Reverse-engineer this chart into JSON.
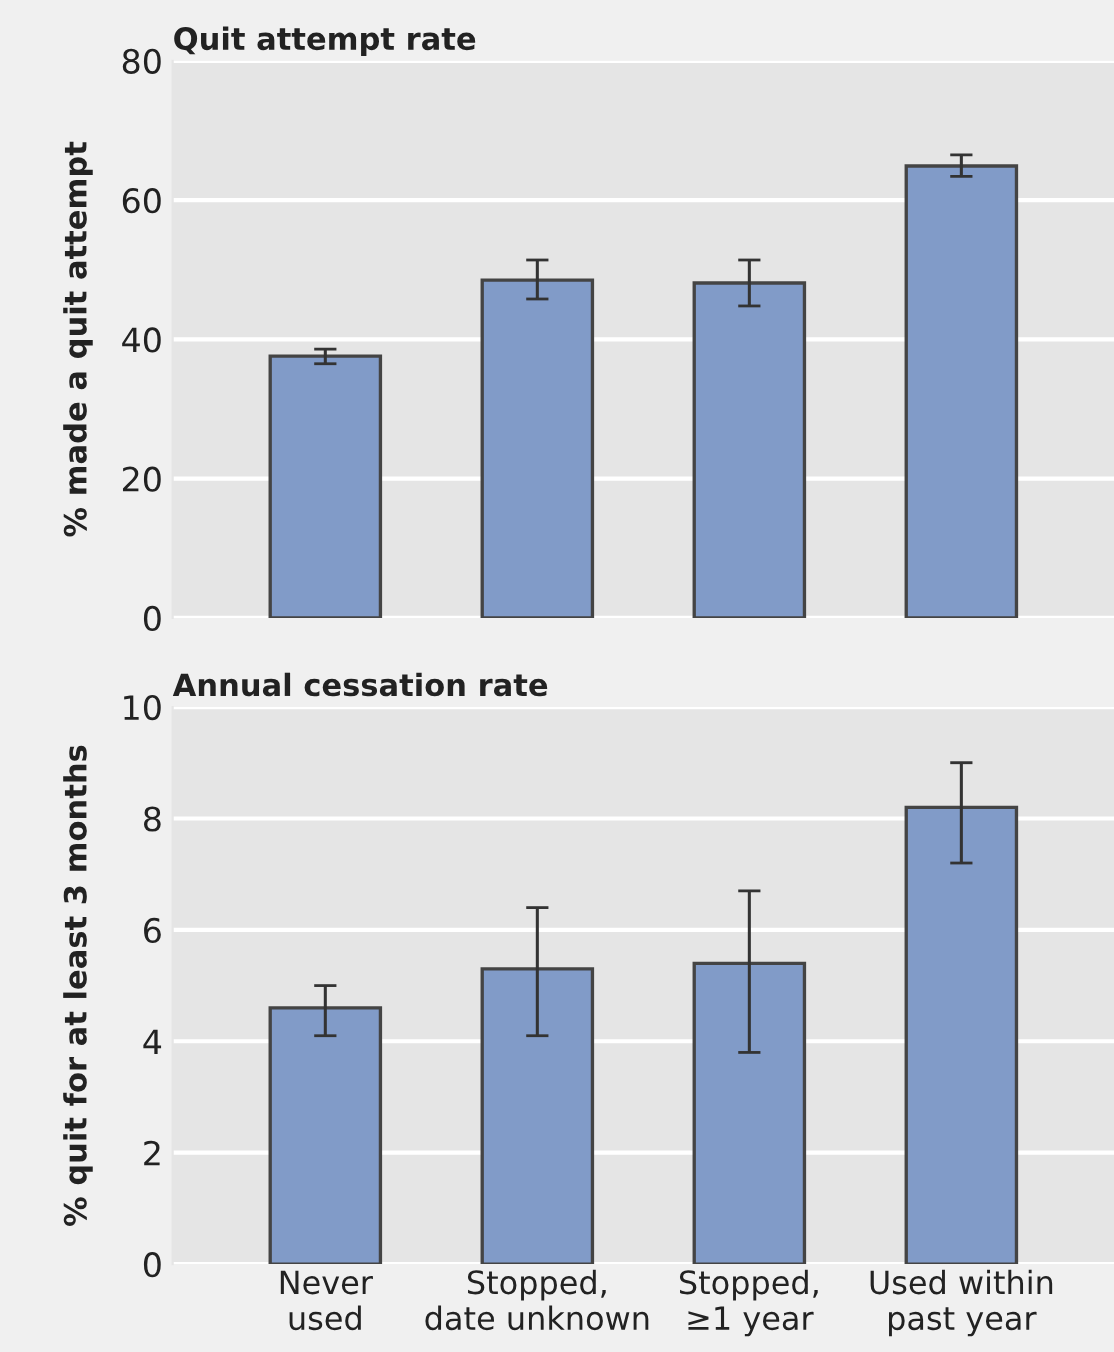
{
  "chart_data": [
    {
      "type": "bar",
      "title": "Quit attempt rate",
      "ylabel": "% made a quit attempt",
      "categories": [
        null,
        null,
        null,
        null
      ],
      "values": [
        37.6,
        48.5,
        48.1,
        64.9
      ],
      "color": "#819bc8",
      "errors": [
        [
          36.5,
          38.6
        ],
        [
          45.8,
          51.4
        ],
        [
          44.8,
          51.4
        ],
        [
          63.4,
          66.5
        ]
      ],
      "ylim": [
        0,
        80
      ],
      "yticks": [
        0,
        20,
        40,
        60,
        80
      ],
      "grid": "y",
      "tick_labels": "y"
    },
    {
      "type": "bar",
      "title": "Annual cessation rate",
      "ylabel": "% quit for at least 3 months",
      "categories": [
        "Never\nused",
        "Stopped,\ndate unknown",
        "Stopped,\n≥1 year",
        "Used within\npast year"
      ],
      "values": [
        4.6,
        5.3,
        5.4,
        8.2
      ],
      "color": "#819bc8",
      "errors": [
        [
          4.1,
          5.0
        ],
        [
          4.1,
          6.4
        ],
        [
          3.8,
          6.7
        ],
        [
          7.2,
          9.0
        ]
      ],
      "ylim": [
        0,
        10
      ],
      "yticks": [
        0,
        2,
        4,
        6,
        8,
        10
      ],
      "grid": "y"
    }
  ]
}
